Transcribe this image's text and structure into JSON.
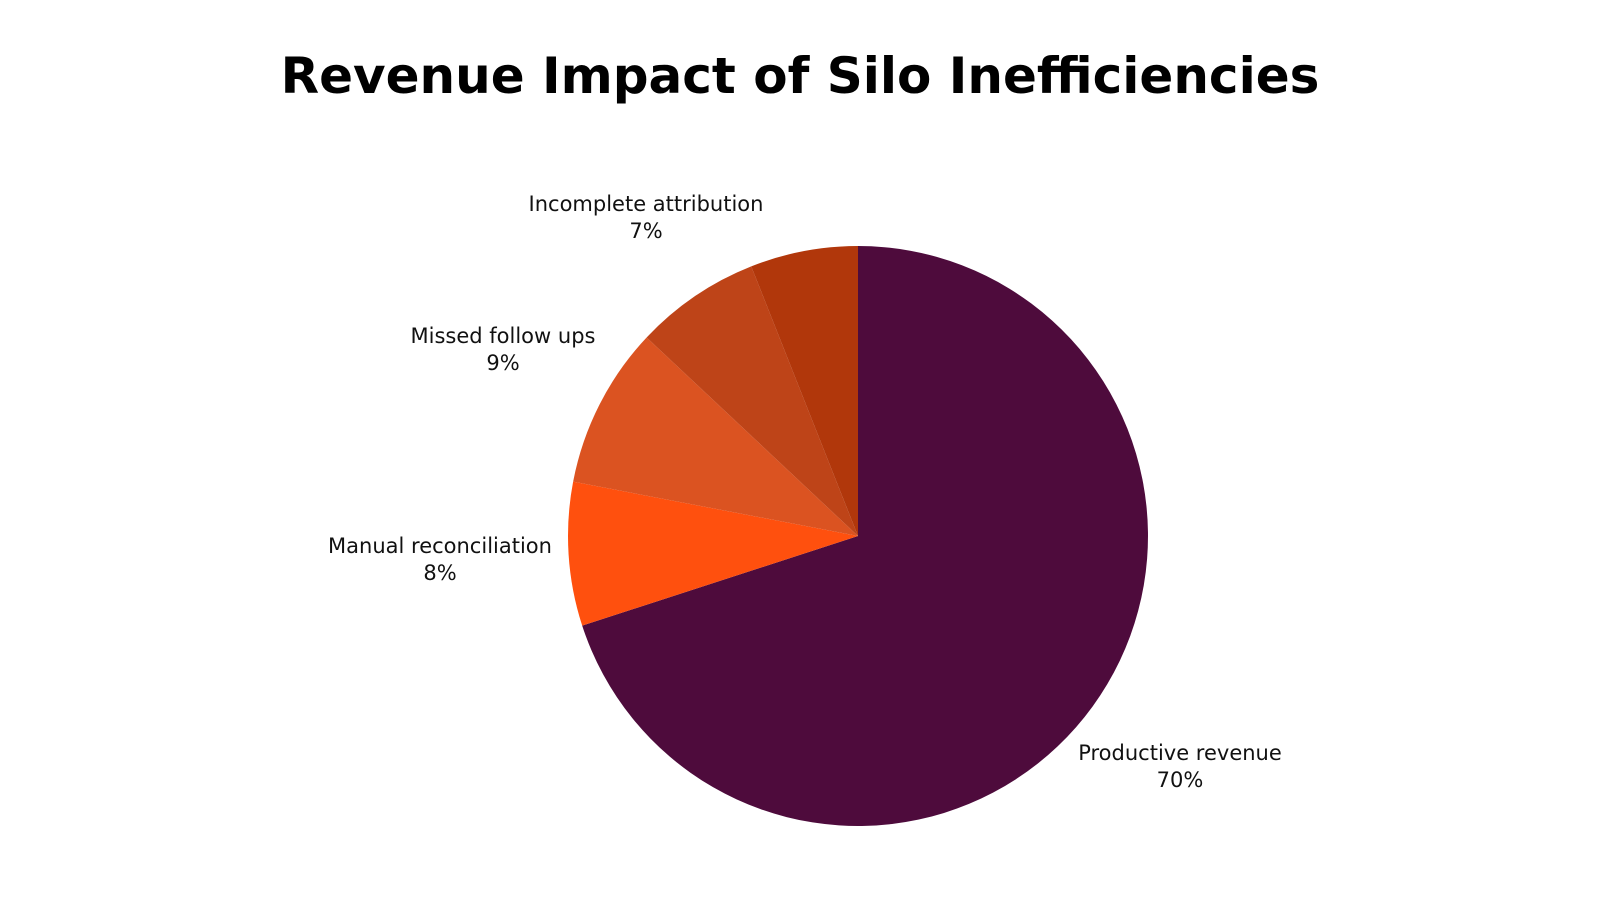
{
  "chart_data": {
    "type": "pie",
    "title": "Revenue Impact of Silo Inefficiencies",
    "slices": [
      {
        "label": "Productive revenue",
        "value": 70,
        "display": "70%",
        "color": "#4E0B3C"
      },
      {
        "label": "Manual reconciliation",
        "value": 8,
        "display": "8%",
        "color": "#FF500E"
      },
      {
        "label": "Missed follow ups",
        "value": 9,
        "display": "9%",
        "color": "#DB5321"
      },
      {
        "label": "Incomplete attribution",
        "value": 7,
        "display": "7%",
        "color": "#BE4418"
      },
      {
        "label": "",
        "value": 6,
        "display": "",
        "color": "#B1370B"
      }
    ],
    "start": "12 o'clock",
    "direction": "clockwise"
  }
}
